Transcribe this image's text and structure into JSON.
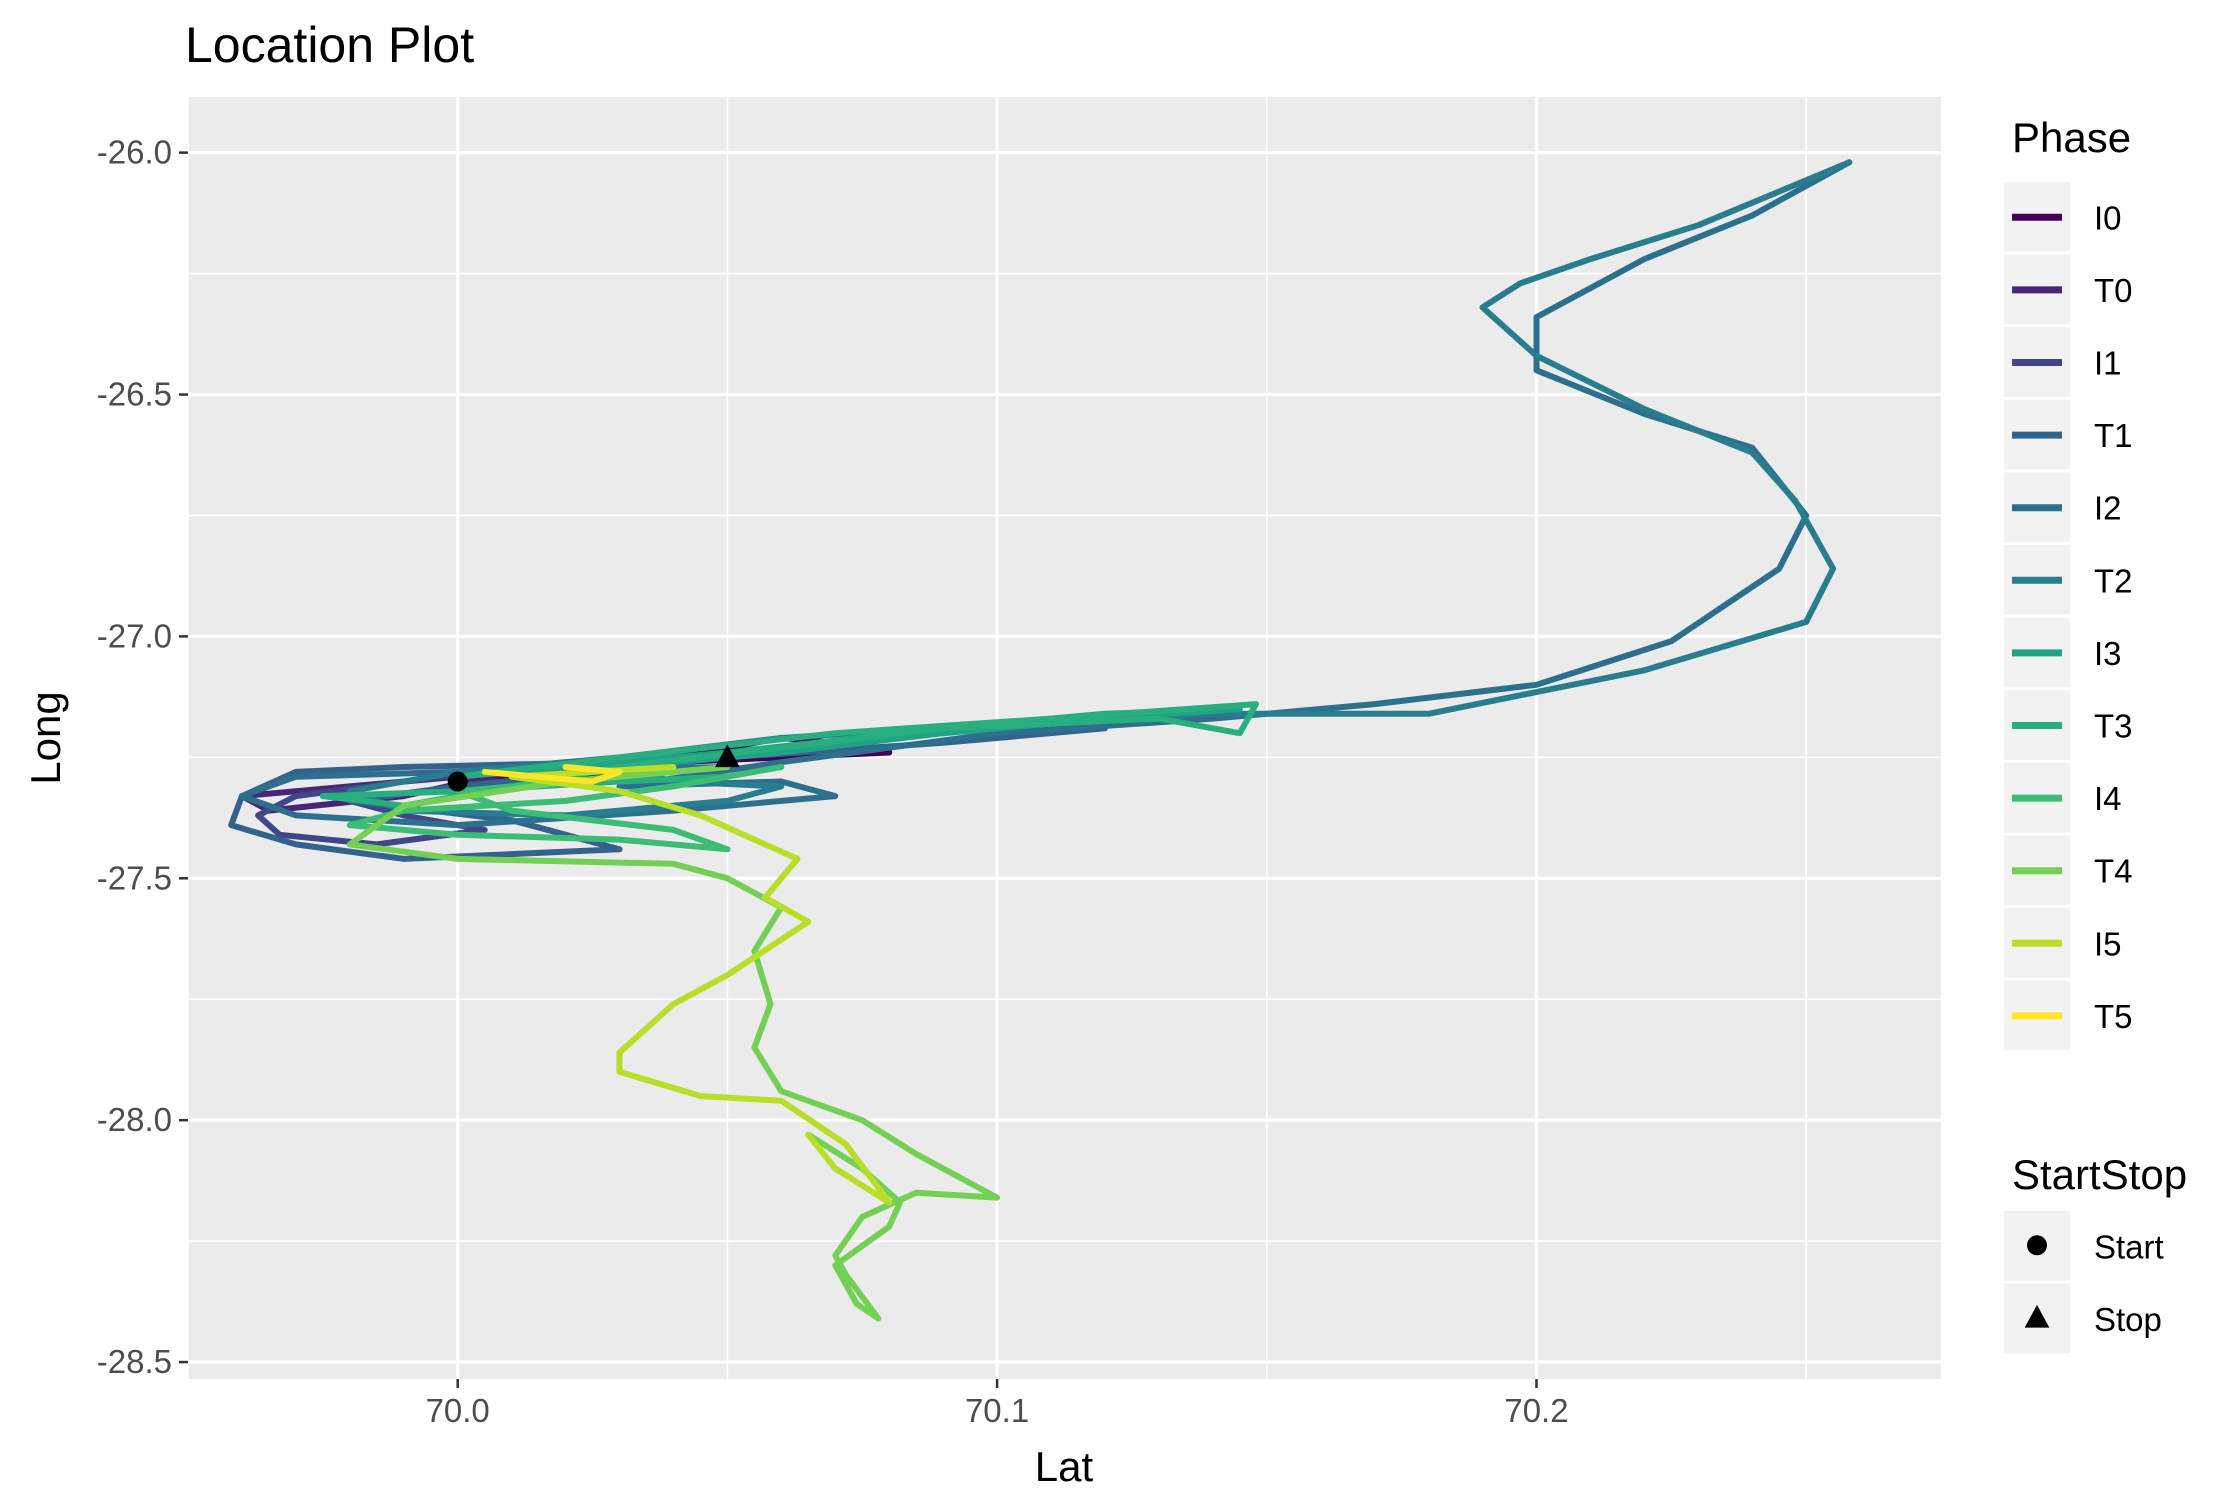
{
  "chart_data": {
    "type": "line",
    "title": "Location Plot",
    "xlabel": "Lat",
    "ylabel": "Long",
    "xlim": [
      69.95,
      70.275
    ],
    "ylim": [
      -28.535,
      -25.885
    ],
    "x_ticks": [
      70.0,
      70.1,
      70.2
    ],
    "x_tick_labels": [
      "70.0",
      "70.1",
      "70.2"
    ],
    "y_ticks": [
      -26.0,
      -26.5,
      -27.0,
      -27.5,
      -28.0,
      -28.5
    ],
    "y_tick_labels": [
      "-26.0",
      "-26.5",
      "-27.0",
      "-27.5",
      "-28.0",
      "-28.5"
    ],
    "grid": true,
    "legend": {
      "placement": "right",
      "phase_title": "Phase",
      "startstop_title": "StartStop"
    },
    "series": [
      {
        "name": "I0",
        "color": "#440154",
        "points": [
          [
            70.0,
            -27.3
          ],
          [
            70.03,
            -27.26
          ],
          [
            70.05,
            -27.23
          ],
          [
            70.06,
            -27.21
          ],
          [
            70.07,
            -27.22
          ],
          [
            70.08,
            -27.24
          ],
          [
            70.06,
            -27.25
          ],
          [
            70.04,
            -27.26
          ],
          [
            70.02,
            -27.27
          ],
          [
            70.0,
            -27.29
          ]
        ]
      },
      {
        "name": "T0",
        "color": "#482677",
        "points": [
          [
            70.0,
            -27.29
          ],
          [
            69.98,
            -27.31
          ],
          [
            69.96,
            -27.33
          ],
          [
            69.965,
            -27.36
          ],
          [
            69.99,
            -27.33
          ],
          [
            70.01,
            -27.28
          ],
          [
            70.03,
            -27.26
          ]
        ]
      },
      {
        "name": "I1",
        "color": "#404688",
        "points": [
          [
            70.02,
            -27.26
          ],
          [
            69.99,
            -27.3
          ],
          [
            69.97,
            -27.33
          ],
          [
            69.963,
            -27.37
          ],
          [
            69.967,
            -27.41
          ],
          [
            69.985,
            -27.43
          ],
          [
            70.005,
            -27.4
          ],
          [
            69.99,
            -27.37
          ],
          [
            69.98,
            -27.34
          ],
          [
            70.0,
            -27.31
          ],
          [
            70.04,
            -27.27
          ]
        ]
      },
      {
        "name": "T1",
        "color": "#33638D",
        "points": [
          [
            70.03,
            -27.26
          ],
          [
            69.99,
            -27.27
          ],
          [
            69.97,
            -27.28
          ],
          [
            69.96,
            -27.33
          ],
          [
            69.958,
            -27.39
          ],
          [
            69.97,
            -27.43
          ],
          [
            69.99,
            -27.46
          ],
          [
            70.03,
            -27.44
          ],
          [
            70.01,
            -27.38
          ],
          [
            69.98,
            -27.34
          ],
          [
            70.0,
            -27.31
          ],
          [
            70.05,
            -27.25
          ],
          [
            70.09,
            -27.22
          ],
          [
            70.12,
            -27.19
          ]
        ]
      },
      {
        "name": "I2",
        "color": "#2D708E",
        "points": [
          [
            70.05,
            -27.27
          ],
          [
            70.0,
            -27.28
          ],
          [
            69.97,
            -27.29
          ],
          [
            69.96,
            -27.33
          ],
          [
            69.97,
            -27.37
          ],
          [
            70.0,
            -27.39
          ],
          [
            70.04,
            -27.36
          ],
          [
            70.07,
            -27.33
          ],
          [
            70.06,
            -27.3
          ],
          [
            70.03,
            -27.31
          ],
          [
            70.06,
            -27.26
          ],
          [
            70.1,
            -27.2
          ],
          [
            70.14,
            -27.17
          ],
          [
            70.17,
            -27.14
          ],
          [
            70.2,
            -27.1
          ],
          [
            70.225,
            -27.01
          ],
          [
            70.245,
            -26.86
          ],
          [
            70.25,
            -26.75
          ],
          [
            70.24,
            -26.61
          ],
          [
            70.22,
            -26.54
          ],
          [
            70.2,
            -26.45
          ],
          [
            70.2,
            -26.34
          ],
          [
            70.22,
            -26.22
          ],
          [
            70.24,
            -26.13
          ],
          [
            70.258,
            -26.02
          ]
        ]
      },
      {
        "name": "T2",
        "color": "#287D8E",
        "points": [
          [
            70.258,
            -26.02
          ],
          [
            70.23,
            -26.15
          ],
          [
            70.21,
            -26.22
          ],
          [
            70.197,
            -26.27
          ],
          [
            70.19,
            -26.32
          ],
          [
            70.2,
            -26.42
          ],
          [
            70.22,
            -26.53
          ],
          [
            70.24,
            -26.62
          ],
          [
            70.248,
            -26.72
          ],
          [
            70.255,
            -26.86
          ],
          [
            70.25,
            -26.97
          ],
          [
            70.22,
            -27.07
          ],
          [
            70.18,
            -27.16
          ],
          [
            70.14,
            -27.16
          ],
          [
            70.1,
            -27.18
          ],
          [
            70.06,
            -27.21
          ],
          [
            70.03,
            -27.25
          ],
          [
            70.0,
            -27.28
          ],
          [
            69.98,
            -27.32
          ],
          [
            69.99,
            -27.36
          ],
          [
            70.02,
            -27.37
          ],
          [
            70.05,
            -27.34
          ],
          [
            70.06,
            -27.31
          ],
          [
            70.04,
            -27.3
          ],
          [
            70.03,
            -27.27
          ]
        ]
      },
      {
        "name": "I3",
        "color": "#20A386",
        "points": [
          [
            70.03,
            -27.27
          ],
          [
            70.06,
            -27.24
          ],
          [
            70.09,
            -27.2
          ],
          [
            70.12,
            -27.17
          ],
          [
            70.145,
            -27.15
          ],
          [
            70.12,
            -27.16
          ],
          [
            70.09,
            -27.19
          ],
          [
            70.05,
            -27.24
          ],
          [
            70.02,
            -27.27
          ],
          [
            70.0,
            -27.29
          ]
        ]
      },
      {
        "name": "T3",
        "color": "#29AF7F",
        "points": [
          [
            70.0,
            -27.29
          ],
          [
            70.03,
            -27.25
          ],
          [
            70.07,
            -27.2
          ],
          [
            70.11,
            -27.17
          ],
          [
            70.148,
            -27.14
          ],
          [
            70.145,
            -27.2
          ],
          [
            70.13,
            -27.17
          ],
          [
            70.09,
            -27.19
          ],
          [
            70.06,
            -27.23
          ],
          [
            70.03,
            -27.27
          ],
          [
            70.01,
            -27.31
          ],
          [
            69.99,
            -27.35
          ],
          [
            69.975,
            -27.33
          ],
          [
            70.0,
            -27.32
          ],
          [
            70.03,
            -27.3
          ],
          [
            70.05,
            -27.29
          ]
        ]
      },
      {
        "name": "I4",
        "color": "#3CBC75",
        "points": [
          [
            70.06,
            -27.27
          ],
          [
            70.04,
            -27.31
          ],
          [
            70.02,
            -27.34
          ],
          [
            69.99,
            -27.36
          ],
          [
            69.98,
            -27.39
          ],
          [
            70.0,
            -27.41
          ],
          [
            70.03,
            -27.42
          ],
          [
            70.05,
            -27.44
          ],
          [
            70.04,
            -27.4
          ],
          [
            70.01,
            -27.36
          ],
          [
            70.0,
            -27.32
          ],
          [
            70.03,
            -27.29
          ],
          [
            70.05,
            -27.27
          ]
        ]
      },
      {
        "name": "T4",
        "color": "#74D055",
        "points": [
          [
            70.05,
            -27.27
          ],
          [
            70.02,
            -27.3
          ],
          [
            69.99,
            -27.35
          ],
          [
            69.98,
            -27.43
          ],
          [
            70.0,
            -27.46
          ],
          [
            70.04,
            -27.47
          ],
          [
            70.05,
            -27.5
          ],
          [
            70.06,
            -27.56
          ],
          [
            70.055,
            -27.65
          ],
          [
            70.058,
            -27.76
          ],
          [
            70.055,
            -27.85
          ],
          [
            70.06,
            -27.94
          ],
          [
            70.075,
            -28.0
          ],
          [
            70.085,
            -28.07
          ],
          [
            70.1,
            -28.16
          ],
          [
            70.085,
            -28.15
          ],
          [
            70.075,
            -28.2
          ],
          [
            70.07,
            -28.28
          ],
          [
            70.072,
            -28.32
          ],
          [
            70.078,
            -28.41
          ],
          [
            70.074,
            -28.38
          ],
          [
            70.07,
            -28.3
          ],
          [
            70.08,
            -28.22
          ],
          [
            70.082,
            -28.17
          ],
          [
            70.075,
            -28.1
          ],
          [
            70.065,
            -28.03
          ]
        ]
      },
      {
        "name": "I5",
        "color": "#B8DE29",
        "points": [
          [
            70.065,
            -28.03
          ],
          [
            70.07,
            -28.1
          ],
          [
            70.08,
            -28.17
          ],
          [
            70.072,
            -28.05
          ],
          [
            70.06,
            -27.96
          ],
          [
            70.045,
            -27.95
          ],
          [
            70.03,
            -27.9
          ],
          [
            70.03,
            -27.86
          ],
          [
            70.04,
            -27.76
          ],
          [
            70.05,
            -27.7
          ],
          [
            70.065,
            -27.59
          ],
          [
            70.057,
            -27.54
          ],
          [
            70.063,
            -27.46
          ],
          [
            70.045,
            -27.37
          ],
          [
            70.03,
            -27.32
          ],
          [
            70.01,
            -27.29
          ],
          [
            70.04,
            -27.27
          ]
        ]
      },
      {
        "name": "T5",
        "color": "#FDE725",
        "points": [
          [
            70.005,
            -27.28
          ],
          [
            70.015,
            -27.29
          ],
          [
            70.025,
            -27.3
          ],
          [
            70.03,
            -27.28
          ],
          [
            70.02,
            -27.27
          ]
        ]
      }
    ],
    "markers": [
      {
        "name": "Start",
        "shape": "circle",
        "x": 70.0,
        "y": -27.3
      },
      {
        "name": "Stop",
        "shape": "triangle",
        "x": 70.05,
        "y": -27.25
      }
    ]
  }
}
